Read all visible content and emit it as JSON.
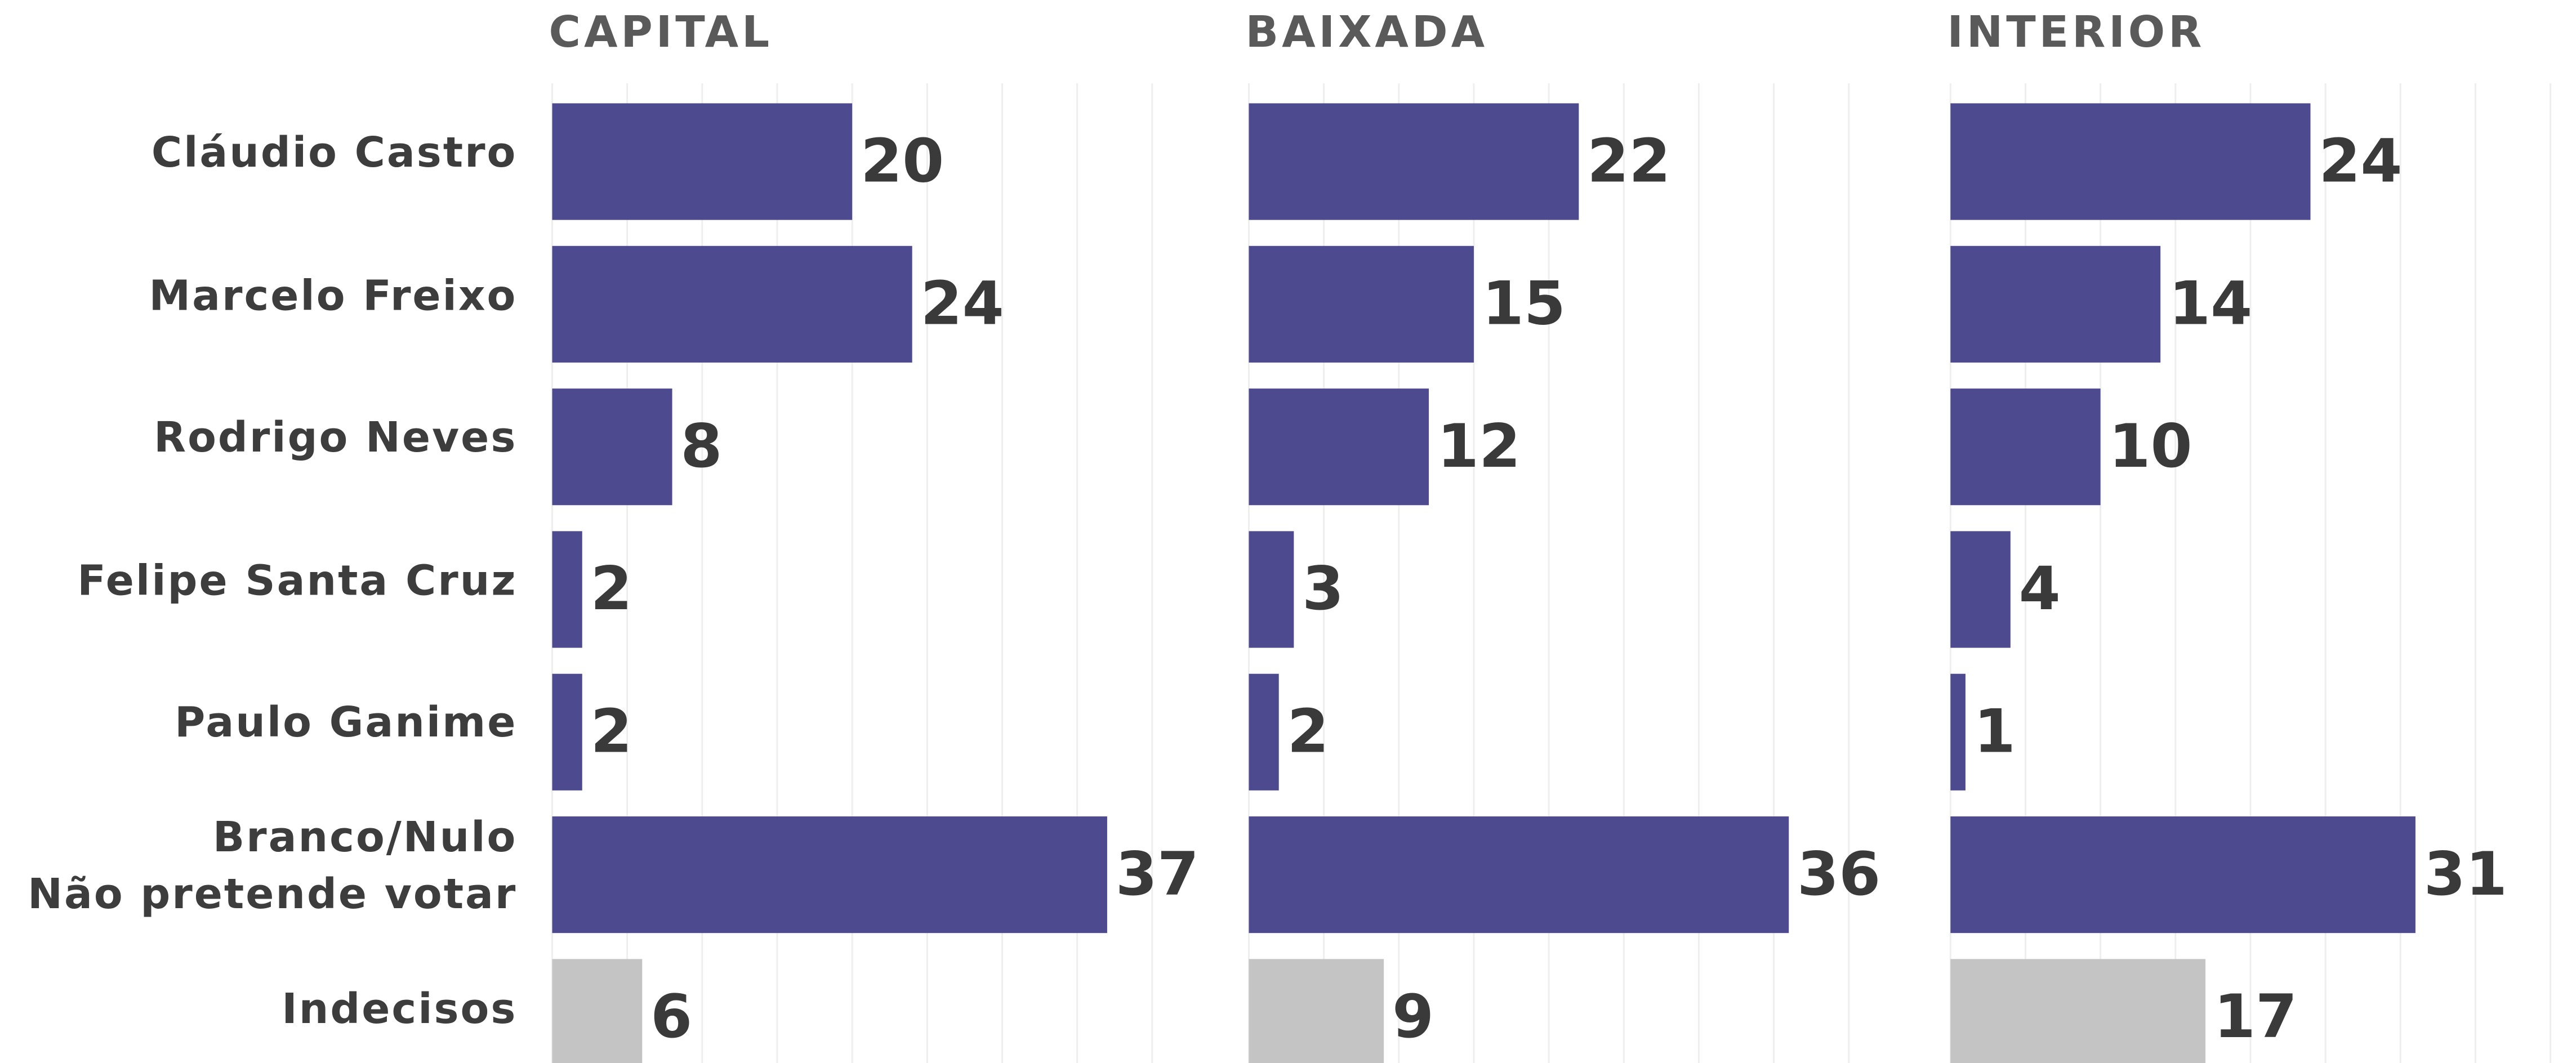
{
  "chart_data": [
    {
      "type": "bar",
      "orientation": "horizontal",
      "title": "CAPITAL",
      "categories": [
        "Cláudio Castro",
        "Marcelo Freixo",
        "Rodrigo Neves",
        "Felipe Santa Cruz",
        "Paulo Ganime",
        "Branco/Nulo\nNão pretende votar",
        "Indecisos"
      ],
      "values": [
        20,
        24,
        8,
        2,
        2,
        37,
        6
      ],
      "colors": [
        "#4d4a8f",
        "#4d4a8f",
        "#4d4a8f",
        "#4d4a8f",
        "#4d4a8f",
        "#4d4a8f",
        "#c4c4c4"
      ],
      "xlim": [
        0,
        40
      ],
      "xticks": [
        0,
        5,
        10,
        15,
        20,
        25,
        30,
        35,
        40
      ],
      "grid": true
    },
    {
      "type": "bar",
      "orientation": "horizontal",
      "title": "BAIXADA",
      "values": [
        22,
        15,
        12,
        3,
        2,
        36,
        9
      ],
      "colors": [
        "#4d4a8f",
        "#4d4a8f",
        "#4d4a8f",
        "#4d4a8f",
        "#4d4a8f",
        "#4d4a8f",
        "#c4c4c4"
      ],
      "xlim": [
        0,
        40
      ],
      "xticks": [
        0,
        5,
        10,
        15,
        20,
        25,
        30,
        35,
        40
      ],
      "grid": true
    },
    {
      "type": "bar",
      "orientation": "horizontal",
      "title": "INTERIOR",
      "values": [
        24,
        14,
        10,
        4,
        1,
        31,
        17
      ],
      "colors": [
        "#4d4a8f",
        "#4d4a8f",
        "#4d4a8f",
        "#4d4a8f",
        "#4d4a8f",
        "#4d4a8f",
        "#c4c4c4"
      ],
      "xlim": [
        0,
        40
      ],
      "xticks": [
        0,
        5,
        10,
        15,
        20,
        25,
        30,
        35,
        40
      ],
      "grid": true
    }
  ]
}
